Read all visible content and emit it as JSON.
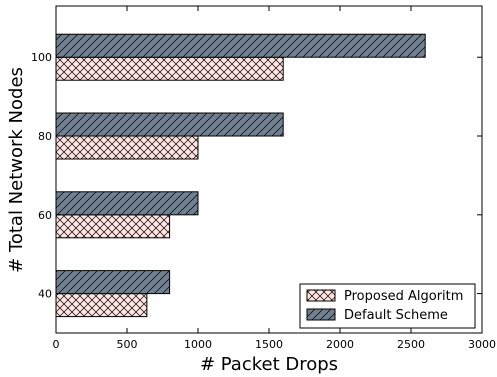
{
  "chart_data": {
    "type": "bar",
    "orientation": "horizontal",
    "categories": [
      "40",
      "60",
      "80",
      "100"
    ],
    "series": [
      {
        "name": "Proposed Algoritm",
        "values": [
          640,
          800,
          1000,
          1600
        ],
        "color": "#ffe4e1",
        "hatch": "crosshatch"
      },
      {
        "name": "Default Scheme",
        "values": [
          800,
          1000,
          1600,
          2600
        ],
        "color": "#708090",
        "hatch": "diagonal"
      }
    ],
    "xlabel": "# Packet Drops",
    "ylabel": "# Total Network Nodes",
    "xlim": [
      0,
      3000
    ],
    "xticks": [
      0,
      500,
      1000,
      1500,
      2000,
      2500,
      3000
    ],
    "ylim": [
      30,
      113
    ],
    "legend_position": "lower-right",
    "grid": false
  }
}
